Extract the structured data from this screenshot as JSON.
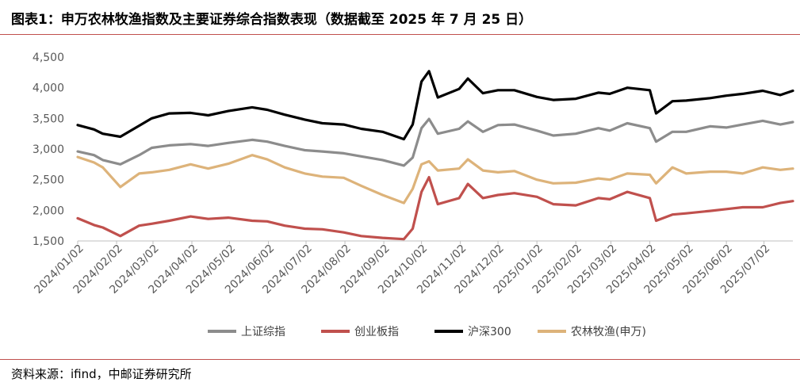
{
  "header": {
    "title": "图表1：申万农林牧渔指数及主要证券综合指数表现（数据截至 2025 年 7 月 25 日）"
  },
  "footer": {
    "source": "资料来源：ifind，中邮证券研究所"
  },
  "colors": {
    "rule": "#c0504d",
    "上证综指": "#8c8c8c",
    "创业板指": "#c0504d",
    "沪深300": "#000000",
    "农林牧渔(申万)": "#ddb37a"
  },
  "chart_data": {
    "type": "line",
    "title": "图表1：申万农林牧渔指数及主要证券综合指数表现（数据截至 2025 年 7 月 25 日）",
    "xlabel": "",
    "ylabel": "",
    "ylim": [
      1500,
      4500
    ],
    "yticks": [
      "1,500",
      "2,000",
      "2,500",
      "3,000",
      "3,500",
      "4,000",
      "4,500"
    ],
    "xticks": [
      "2024/01/02",
      "2024/02/02",
      "2024/03/02",
      "2024/04/02",
      "2024/05/02",
      "2024/06/02",
      "2024/07/02",
      "2024/08/02",
      "2024/09/02",
      "2024/10/02",
      "2024/11/02",
      "2024/12/02",
      "2025/01/02",
      "2025/02/02",
      "2025/03/02",
      "2025/04/02",
      "2025/05/02",
      "2025/06/02",
      "2025/07/02"
    ],
    "x": [
      "2024/01/02",
      "2024/01/15",
      "2024/01/22",
      "2024/02/05",
      "2024/02/20",
      "2024/03/01",
      "2024/03/15",
      "2024/04/01",
      "2024/04/15",
      "2024/05/01",
      "2024/05/20",
      "2024/06/01",
      "2024/06/15",
      "2024/07/01",
      "2024/07/15",
      "2024/08/01",
      "2024/08/15",
      "2024/09/01",
      "2024/09/18",
      "2024/09/25",
      "2024/10/02",
      "2024/10/08",
      "2024/10/15",
      "2024/11/01",
      "2024/11/08",
      "2024/11/20",
      "2024/12/02",
      "2024/12/15",
      "2025/01/02",
      "2025/01/15",
      "2025/02/02",
      "2025/02/20",
      "2025/03/01",
      "2025/03/15",
      "2025/04/02",
      "2025/04/07",
      "2025/04/20",
      "2025/05/01",
      "2025/05/20",
      "2025/06/02",
      "2025/06/15",
      "2025/07/01",
      "2025/07/15",
      "2025/07/25"
    ],
    "legend": {
      "placement": "bottom"
    },
    "grid": false,
    "series": [
      {
        "name": "上证综指",
        "values": [
          2960,
          2900,
          2820,
          2750,
          2900,
          3020,
          3060,
          3080,
          3050,
          3100,
          3150,
          3120,
          3050,
          2980,
          2960,
          2930,
          2880,
          2820,
          2730,
          2860,
          3340,
          3490,
          3250,
          3330,
          3450,
          3280,
          3390,
          3400,
          3300,
          3220,
          3250,
          3340,
          3300,
          3420,
          3340,
          3120,
          3280,
          3280,
          3370,
          3350,
          3400,
          3460,
          3400,
          3440
        ]
      },
      {
        "name": "创业板指",
        "values": [
          1870,
          1760,
          1720,
          1580,
          1750,
          1780,
          1830,
          1900,
          1860,
          1880,
          1830,
          1820,
          1750,
          1700,
          1690,
          1640,
          1580,
          1550,
          1530,
          1700,
          2300,
          2540,
          2100,
          2200,
          2430,
          2200,
          2250,
          2280,
          2220,
          2100,
          2080,
          2200,
          2180,
          2300,
          2200,
          1830,
          1930,
          1950,
          1990,
          2020,
          2050,
          2050,
          2120,
          2150
        ]
      },
      {
        "name": "沪深300",
        "values": [
          3390,
          3320,
          3250,
          3200,
          3380,
          3500,
          3580,
          3590,
          3550,
          3620,
          3680,
          3640,
          3560,
          3480,
          3420,
          3400,
          3330,
          3280,
          3160,
          3400,
          4100,
          4270,
          3840,
          3980,
          4150,
          3910,
          3960,
          3960,
          3850,
          3800,
          3820,
          3920,
          3900,
          4000,
          3960,
          3580,
          3780,
          3790,
          3830,
          3870,
          3900,
          3950,
          3880,
          3950
        ]
      },
      {
        "name": "农林牧渔(申万)",
        "values": [
          2870,
          2780,
          2700,
          2380,
          2600,
          2620,
          2660,
          2750,
          2680,
          2760,
          2900,
          2830,
          2700,
          2600,
          2550,
          2530,
          2400,
          2250,
          2120,
          2350,
          2750,
          2800,
          2650,
          2680,
          2830,
          2650,
          2620,
          2640,
          2500,
          2440,
          2450,
          2520,
          2500,
          2600,
          2580,
          2440,
          2700,
          2600,
          2630,
          2630,
          2600,
          2700,
          2660,
          2680
        ]
      }
    ]
  }
}
